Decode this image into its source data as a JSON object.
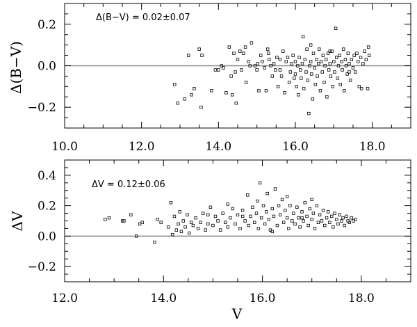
{
  "chart_data": [
    {
      "type": "scatter",
      "ylabel": "Δ(B−V)",
      "xlabel": "",
      "annotation": "Δ(B−V)  =  0.02±0.07",
      "xlim": [
        10.0,
        19.0
      ],
      "ylim": [
        -0.3,
        0.3
      ],
      "xticks": [
        10.0,
        12.0,
        14.0,
        16.0,
        18.0
      ],
      "xtick_labels": [
        "10.0",
        "12.0",
        "14.0",
        "16.0",
        "18.0"
      ],
      "yticks": [
        -0.2,
        0.0,
        0.2
      ],
      "ytick_labels": [
        "−0.2",
        "0.0",
        "0.2"
      ],
      "reference_line_y": 0.0,
      "points": [
        [
          12.86,
          -0.09
        ],
        [
          12.94,
          -0.18
        ],
        [
          13.12,
          -0.16
        ],
        [
          13.22,
          0.05
        ],
        [
          13.3,
          -0.14
        ],
        [
          13.37,
          -0.11
        ],
        [
          13.5,
          0.08
        ],
        [
          13.57,
          0.05
        ],
        [
          13.55,
          -0.2
        ],
        [
          13.82,
          -0.12
        ],
        [
          13.92,
          -0.02
        ],
        [
          14.0,
          -0.02
        ],
        [
          14.08,
          0.0
        ],
        [
          14.13,
          -0.01
        ],
        [
          14.2,
          -0.13
        ],
        [
          14.28,
          0.09
        ],
        [
          14.33,
          -0.05
        ],
        [
          14.36,
          -0.14
        ],
        [
          14.4,
          0.06
        ],
        [
          14.44,
          -0.03
        ],
        [
          14.46,
          -0.18
        ],
        [
          14.5,
          0.03
        ],
        [
          14.56,
          0.07
        ],
        [
          14.6,
          -0.02
        ],
        [
          14.65,
          0.06
        ],
        [
          14.7,
          0.09
        ],
        [
          14.72,
          -0.08
        ],
        [
          14.78,
          0.02
        ],
        [
          14.82,
          0.0
        ],
        [
          14.86,
          0.11
        ],
        [
          14.95,
          0.0
        ],
        [
          15.02,
          0.01
        ],
        [
          15.05,
          -0.12
        ],
        [
          15.1,
          0.05
        ],
        [
          15.14,
          0.02
        ],
        [
          15.2,
          -0.01
        ],
        [
          15.24,
          -0.12
        ],
        [
          15.28,
          0.08
        ],
        [
          15.32,
          0.03
        ],
        [
          15.36,
          0.0
        ],
        [
          15.4,
          -0.05
        ],
        [
          15.44,
          0.01
        ],
        [
          15.48,
          -0.02
        ],
        [
          15.52,
          0.04
        ],
        [
          15.55,
          -0.1
        ],
        [
          15.6,
          0.03
        ],
        [
          15.64,
          -0.05
        ],
        [
          15.68,
          0.07
        ],
        [
          15.72,
          -0.13
        ],
        [
          15.76,
          0.02
        ],
        [
          15.8,
          0.04
        ],
        [
          15.84,
          -0.08
        ],
        [
          15.87,
          -0.03
        ],
        [
          15.9,
          0.01
        ],
        [
          15.94,
          0.05
        ],
        [
          15.97,
          -0.06
        ],
        [
          16.0,
          0.02
        ],
        [
          16.03,
          -0.1
        ],
        [
          16.06,
          0.0
        ],
        [
          16.08,
          -0.14
        ],
        [
          16.1,
          0.04
        ],
        [
          16.13,
          -0.02
        ],
        [
          16.15,
          -0.06
        ],
        [
          16.18,
          0.01
        ],
        [
          16.2,
          0.14
        ],
        [
          16.22,
          -0.11
        ],
        [
          16.25,
          0.03
        ],
        [
          16.28,
          -0.03
        ],
        [
          16.3,
          0.08
        ],
        [
          16.32,
          -0.07
        ],
        [
          16.35,
          -0.23
        ],
        [
          16.37,
          0.0
        ],
        [
          16.4,
          0.02
        ],
        [
          16.42,
          -0.04
        ],
        [
          16.45,
          -0.16
        ],
        [
          16.47,
          0.06
        ],
        [
          16.5,
          -0.01
        ],
        [
          16.52,
          -0.09
        ],
        [
          16.55,
          0.03
        ],
        [
          16.57,
          -0.05
        ],
        [
          16.6,
          0.01
        ],
        [
          16.62,
          0.08
        ],
        [
          16.65,
          -0.12
        ],
        [
          16.67,
          0.02
        ],
        [
          16.7,
          -0.03
        ],
        [
          16.72,
          0.05
        ],
        [
          16.75,
          -0.08
        ],
        [
          16.77,
          0.0
        ],
        [
          16.8,
          0.03
        ],
        [
          16.82,
          -0.15
        ],
        [
          16.85,
          0.06
        ],
        [
          16.87,
          -0.02
        ],
        [
          16.9,
          0.01
        ],
        [
          16.92,
          -0.05
        ],
        [
          16.95,
          0.07
        ],
        [
          16.97,
          -0.1
        ],
        [
          17.0,
          0.02
        ],
        [
          17.02,
          -0.03
        ],
        [
          17.05,
          0.18
        ],
        [
          17.07,
          0.04
        ],
        [
          17.1,
          -0.06
        ],
        [
          17.12,
          0.0
        ],
        [
          17.15,
          0.05
        ],
        [
          17.17,
          -0.09
        ],
        [
          17.2,
          0.02
        ],
        [
          17.22,
          -0.02
        ],
        [
          17.25,
          0.08
        ],
        [
          17.27,
          -0.12
        ],
        [
          17.3,
          0.03
        ],
        [
          17.32,
          0.0
        ],
        [
          17.35,
          -0.04
        ],
        [
          17.37,
          0.06
        ],
        [
          17.4,
          0.01
        ],
        [
          17.43,
          -0.07
        ],
        [
          17.46,
          0.03
        ],
        [
          17.5,
          -0.01
        ],
        [
          17.53,
          0.05
        ],
        [
          17.56,
          -0.03
        ],
        [
          17.6,
          0.06
        ],
        [
          17.63,
          0.02
        ],
        [
          17.66,
          -0.1
        ],
        [
          17.7,
          0.04
        ],
        [
          17.72,
          -0.11
        ],
        [
          17.76,
          0.01
        ],
        [
          17.8,
          0.07
        ],
        [
          17.84,
          0.03
        ],
        [
          17.88,
          -0.11
        ],
        [
          17.9,
          0.09
        ],
        [
          17.92,
          0.05
        ],
        [
          15.0,
          -0.02
        ],
        [
          15.3,
          0.06
        ],
        [
          15.6,
          -0.02
        ],
        [
          16.0,
          -0.04
        ],
        [
          16.4,
          0.1
        ],
        [
          16.9,
          0.07
        ],
        [
          17.4,
          -0.03
        ]
      ]
    },
    {
      "type": "scatter",
      "ylabel": "ΔV",
      "xlabel": "V",
      "annotation": "ΔV  =  0.12±0.06",
      "xlim": [
        12.0,
        19.0
      ],
      "ylim": [
        -0.3,
        0.5
      ],
      "xticks": [
        12.0,
        14.0,
        16.0,
        18.0
      ],
      "xtick_labels": [
        "12.0",
        "14.0",
        "16.0",
        "18.0"
      ],
      "yticks": [
        -0.2,
        0.0,
        0.2,
        0.4
      ],
      "ytick_labels": [
        "−0.2",
        "0.0",
        "0.2",
        "0.4"
      ],
      "reference_line_y": 0.0,
      "points": [
        [
          12.82,
          0.11
        ],
        [
          12.9,
          0.12
        ],
        [
          13.17,
          0.1
        ],
        [
          13.2,
          0.1
        ],
        [
          13.34,
          0.14
        ],
        [
          13.45,
          0.0
        ],
        [
          13.52,
          0.08
        ],
        [
          13.57,
          0.09
        ],
        [
          13.82,
          -0.04
        ],
        [
          13.88,
          0.11
        ],
        [
          13.95,
          0.09
        ],
        [
          14.1,
          0.06
        ],
        [
          14.15,
          0.22
        ],
        [
          14.18,
          0.01
        ],
        [
          14.22,
          0.13
        ],
        [
          14.26,
          0.04
        ],
        [
          14.3,
          0.08
        ],
        [
          14.33,
          0.16
        ],
        [
          14.36,
          0.03
        ],
        [
          14.4,
          0.1
        ],
        [
          14.44,
          0.06
        ],
        [
          14.48,
          0.14
        ],
        [
          14.52,
          0.02
        ],
        [
          14.56,
          0.09
        ],
        [
          14.6,
          0.07
        ],
        [
          14.65,
          0.12
        ],
        [
          14.7,
          0.05
        ],
        [
          14.75,
          0.09
        ],
        [
          14.8,
          0.15
        ],
        [
          14.85,
          0.04
        ],
        [
          14.9,
          0.08
        ],
        [
          14.95,
          0.19
        ],
        [
          15.0,
          0.07
        ],
        [
          15.05,
          0.13
        ],
        [
          15.1,
          0.1
        ],
        [
          15.15,
          0.04
        ],
        [
          15.2,
          0.15
        ],
        [
          15.25,
          0.09
        ],
        [
          15.3,
          0.06
        ],
        [
          15.35,
          0.12
        ],
        [
          15.4,
          0.18
        ],
        [
          15.45,
          0.08
        ],
        [
          15.5,
          0.14
        ],
        [
          15.55,
          0.05
        ],
        [
          15.6,
          0.17
        ],
        [
          15.65,
          0.1
        ],
        [
          15.7,
          0.27
        ],
        [
          15.72,
          0.07
        ],
        [
          15.76,
          0.13
        ],
        [
          15.8,
          0.19
        ],
        [
          15.84,
          0.09
        ],
        [
          15.88,
          0.15
        ],
        [
          15.92,
          0.05
        ],
        [
          15.95,
          0.35
        ],
        [
          15.98,
          0.12
        ],
        [
          16.02,
          0.2
        ],
        [
          16.05,
          0.08
        ],
        [
          16.08,
          0.16
        ],
        [
          16.1,
          0.28
        ],
        [
          16.13,
          0.11
        ],
        [
          16.16,
          0.04
        ],
        [
          16.2,
          0.18
        ],
        [
          16.23,
          0.13
        ],
        [
          16.26,
          0.31
        ],
        [
          16.3,
          0.07
        ],
        [
          16.33,
          0.2
        ],
        [
          16.36,
          0.14
        ],
        [
          16.4,
          0.24
        ],
        [
          16.43,
          0.09
        ],
        [
          16.46,
          0.17
        ],
        [
          16.5,
          0.12
        ],
        [
          16.53,
          0.05
        ],
        [
          16.56,
          0.2
        ],
        [
          16.6,
          0.1
        ],
        [
          16.63,
          0.15
        ],
        [
          16.66,
          0.08
        ],
        [
          16.7,
          0.19
        ],
        [
          16.73,
          0.12
        ],
        [
          16.76,
          0.06
        ],
        [
          16.8,
          0.16
        ],
        [
          16.83,
          0.1
        ],
        [
          16.86,
          0.22
        ],
        [
          16.9,
          0.13
        ],
        [
          16.93,
          0.07
        ],
        [
          16.96,
          0.18
        ],
        [
          17.0,
          0.11
        ],
        [
          17.03,
          0.15
        ],
        [
          17.06,
          0.05
        ],
        [
          17.1,
          0.2
        ],
        [
          17.13,
          0.09
        ],
        [
          17.16,
          0.14
        ],
        [
          17.2,
          0.1
        ],
        [
          17.23,
          0.17
        ],
        [
          17.26,
          0.07
        ],
        [
          17.3,
          0.12
        ],
        [
          17.33,
          0.16
        ],
        [
          17.36,
          0.09
        ],
        [
          17.4,
          0.13
        ],
        [
          17.43,
          0.06
        ],
        [
          17.46,
          0.15
        ],
        [
          17.5,
          0.11
        ],
        [
          17.53,
          0.08
        ],
        [
          17.56,
          0.14
        ],
        [
          17.6,
          0.1
        ],
        [
          17.63,
          0.12
        ],
        [
          17.66,
          0.07
        ],
        [
          17.7,
          0.13
        ],
        [
          17.73,
          0.1
        ],
        [
          17.76,
          0.09
        ],
        [
          17.8,
          0.12
        ],
        [
          17.84,
          0.1
        ],
        [
          17.88,
          0.11
        ],
        [
          15.3,
          0.21
        ],
        [
          15.9,
          0.23
        ],
        [
          16.5,
          0.26
        ],
        [
          17.0,
          0.24
        ],
        [
          16.2,
          0.03
        ],
        [
          14.9,
          0.14
        ],
        [
          15.6,
          0.13
        ],
        [
          16.8,
          0.12
        ]
      ]
    }
  ]
}
